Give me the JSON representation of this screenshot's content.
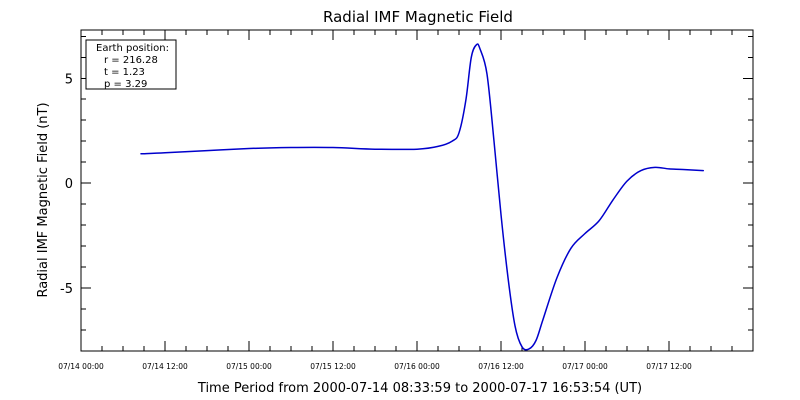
{
  "chart_data": {
    "type": "line",
    "title": "Radial IMF Magnetic Field",
    "xlabel": "Time Period from 2000-07-14 08:33:59 to 2000-07-17 16:53:54 (UT)",
    "ylabel": "Radial IMF Magnetic Field (nT)",
    "x_unit": "datetime",
    "xlim": [
      "2000-07-14 00:00",
      "2000-07-18 00:00"
    ],
    "ylim": [
      -8.0,
      7.3
    ],
    "y_ticks": [
      {
        "value": 5,
        "label": "5"
      },
      {
        "value": 0,
        "label": "0"
      },
      {
        "value": -5,
        "label": "-5"
      }
    ],
    "x_ticks": [
      {
        "value": "2000-07-14 00:00",
        "label": "07/14 00:00"
      },
      {
        "value": "2000-07-14 12:00",
        "label": "07/14 12:00"
      },
      {
        "value": "2000-07-15 00:00",
        "label": "07/15 00:00"
      },
      {
        "value": "2000-07-15 12:00",
        "label": "07/15 12:00"
      },
      {
        "value": "2000-07-16 00:00",
        "label": "07/16 00:00"
      },
      {
        "value": "2000-07-16 12:00",
        "label": "07/16 12:00"
      },
      {
        "value": "2000-07-17 00:00",
        "label": "07/17 00:00"
      },
      {
        "value": "2000-07-17 12:00",
        "label": "07/17 12:00"
      }
    ],
    "series": [
      {
        "color": "#0000cc",
        "points": [
          {
            "x": "2000-07-14 08:34",
            "y": 1.4
          },
          {
            "x": "2000-07-14 12:00",
            "y": 1.45
          },
          {
            "x": "2000-07-14 18:00",
            "y": 1.55
          },
          {
            "x": "2000-07-15 00:00",
            "y": 1.65
          },
          {
            "x": "2000-07-15 06:00",
            "y": 1.7
          },
          {
            "x": "2000-07-15 12:00",
            "y": 1.7
          },
          {
            "x": "2000-07-15 18:00",
            "y": 1.62
          },
          {
            "x": "2000-07-16 00:00",
            "y": 1.62
          },
          {
            "x": "2000-07-16 03:00",
            "y": 1.75
          },
          {
            "x": "2000-07-16 05:00",
            "y": 2.0
          },
          {
            "x": "2000-07-16 06:00",
            "y": 2.4
          },
          {
            "x": "2000-07-16 07:00",
            "y": 4.0
          },
          {
            "x": "2000-07-16 07:45",
            "y": 6.0
          },
          {
            "x": "2000-07-16 08:30",
            "y": 6.6
          },
          {
            "x": "2000-07-16 09:00",
            "y": 6.4
          },
          {
            "x": "2000-07-16 10:00",
            "y": 5.2
          },
          {
            "x": "2000-07-16 11:00",
            "y": 2.0
          },
          {
            "x": "2000-07-16 12:00",
            "y": -1.5
          },
          {
            "x": "2000-07-16 13:00",
            "y": -4.5
          },
          {
            "x": "2000-07-16 14:00",
            "y": -6.8
          },
          {
            "x": "2000-07-16 15:00",
            "y": -7.8
          },
          {
            "x": "2000-07-16 16:00",
            "y": -7.9
          },
          {
            "x": "2000-07-16 17:00",
            "y": -7.5
          },
          {
            "x": "2000-07-16 18:00",
            "y": -6.5
          },
          {
            "x": "2000-07-16 20:00",
            "y": -4.5
          },
          {
            "x": "2000-07-16 22:00",
            "y": -3.1
          },
          {
            "x": "2000-07-17 00:00",
            "y": -2.4
          },
          {
            "x": "2000-07-17 02:00",
            "y": -1.8
          },
          {
            "x": "2000-07-17 04:00",
            "y": -0.8
          },
          {
            "x": "2000-07-17 06:00",
            "y": 0.1
          },
          {
            "x": "2000-07-17 08:00",
            "y": 0.6
          },
          {
            "x": "2000-07-17 10:00",
            "y": 0.75
          },
          {
            "x": "2000-07-17 12:00",
            "y": 0.68
          },
          {
            "x": "2000-07-17 14:00",
            "y": 0.65
          },
          {
            "x": "2000-07-17 16:54",
            "y": 0.6
          }
        ]
      }
    ],
    "legend_position": "top-left",
    "annotation": {
      "heading": "Earth position:",
      "lines": [
        "r = 216.28",
        "t = 1.23",
        "p = 3.29"
      ]
    },
    "grid": false
  }
}
